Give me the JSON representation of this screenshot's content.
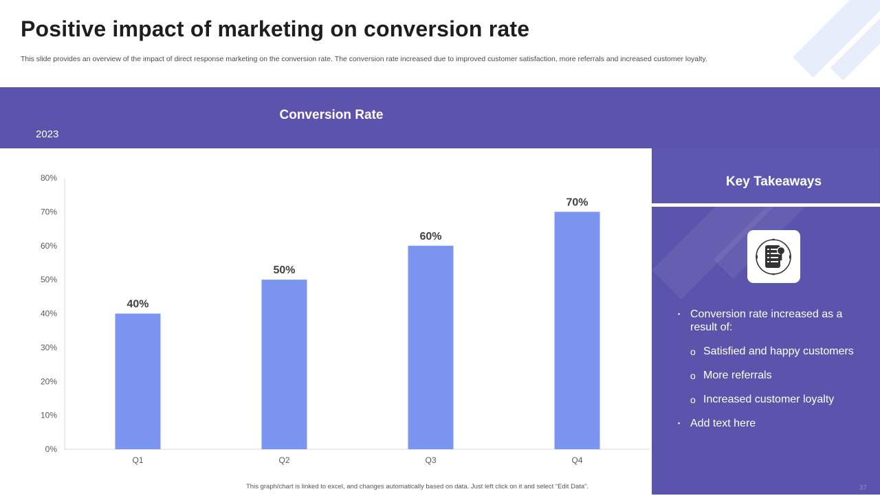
{
  "slide": {
    "title": "Positive impact of marketing on conversion rate",
    "subtitle": "This slide provides an overview of the impact of direct response marketing on the conversion rate. The conversion rate increased due to improved customer satisfaction, more referrals and increased customer loyalty.",
    "year": "2023",
    "footnote": "This graph/chart is linked to excel, and changes automatically based on data. Just left click on it and select “Edit Data”.",
    "page_number": "37"
  },
  "colors": {
    "band": "#5b53ac",
    "bar": "#7b95f0",
    "accent_light": "#e8edfb"
  },
  "chart_data": {
    "type": "bar",
    "title": "Conversion Rate",
    "categories": [
      "Q1",
      "Q2",
      "Q3",
      "Q4"
    ],
    "values": [
      40,
      50,
      60,
      70
    ],
    "data_labels": [
      "40%",
      "50%",
      "60%",
      "70%"
    ],
    "yticks": [
      0,
      10,
      20,
      30,
      40,
      50,
      60,
      70,
      80
    ],
    "ytick_labels": [
      "0%",
      "10%",
      "20%",
      "30%",
      "40%",
      "50%",
      "60%",
      "70%",
      "80%"
    ],
    "ylim": [
      0,
      80
    ],
    "xlabel": "",
    "ylabel": "",
    "grid": false
  },
  "panel": {
    "title": "Key Takeaways",
    "icon": "document-lock-icon",
    "items": [
      {
        "text": "Conversion rate increased as a result of:",
        "subitems": [
          "Satisfied and happy customers",
          "More referrals",
          "Increased customer loyalty"
        ]
      },
      {
        "text": "Add text here",
        "subitems": []
      }
    ],
    "bullet": "▪",
    "sub_bullet": "o"
  }
}
